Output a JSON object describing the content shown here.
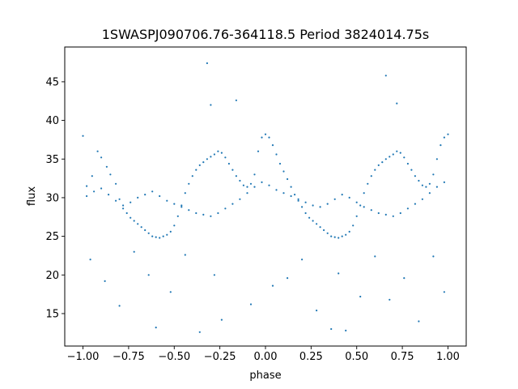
{
  "chart_data": {
    "type": "scatter",
    "title": "1SWASPJ090706.76-364118.5 Period 3824014.75s",
    "xlabel": "phase",
    "ylabel": "flux",
    "xlim": [
      -1.1,
      1.1
    ],
    "ylim": [
      10.8,
      49.5
    ],
    "xticks": [
      -1.0,
      -0.75,
      -0.5,
      -0.25,
      0.0,
      0.25,
      0.5,
      0.75,
      1.0
    ],
    "xtick_labels": [
      "−1.00",
      "−0.75",
      "−0.50",
      "−0.25",
      "0.00",
      "0.25",
      "0.50",
      "0.75",
      "1.00"
    ],
    "yticks": [
      15,
      20,
      25,
      30,
      35,
      40,
      45
    ],
    "ytick_labels": [
      "15",
      "20",
      "25",
      "30",
      "35",
      "40",
      "45"
    ],
    "grid": false,
    "marker_color": "#1f77b4",
    "series": [
      {
        "x": [
          -1.0,
          -0.98,
          -0.95,
          -0.92,
          -0.9,
          -0.87,
          -0.85,
          -0.82,
          -0.8,
          -0.78,
          -0.76,
          -0.74,
          -0.72,
          -0.7,
          -0.68,
          -0.66,
          -0.64,
          -0.62,
          -0.6,
          -0.58,
          -0.56,
          -0.54,
          -0.52,
          -0.5,
          -0.48,
          -0.46,
          -0.44,
          -0.42,
          -0.4,
          -0.38,
          -0.36,
          -0.34,
          -0.32,
          -0.3,
          -0.28,
          -0.26,
          -0.24,
          -0.22,
          -0.2,
          -0.18,
          -0.16,
          -0.14,
          -0.12,
          -0.1,
          -0.08,
          -0.06,
          -0.04,
          -0.02,
          0.0,
          0.02,
          0.04,
          0.06,
          0.08,
          0.1,
          0.12,
          0.14,
          0.16,
          0.18,
          0.2,
          0.22,
          0.24,
          0.26,
          0.28,
          0.3,
          0.32,
          0.34,
          0.36,
          0.38,
          0.4,
          0.42,
          0.44,
          0.46,
          0.48,
          0.5,
          0.52,
          0.54,
          0.56,
          0.58,
          0.6,
          0.62,
          0.64,
          0.66,
          0.68,
          0.7,
          0.72,
          0.74,
          0.76,
          0.78,
          0.8,
          0.82,
          0.84,
          0.86,
          0.88,
          0.9,
          0.92,
          0.94,
          0.96,
          0.98,
          1.0
        ],
        "y": [
          38.0,
          31.5,
          32.8,
          36.0,
          35.2,
          34.0,
          33.0,
          31.8,
          29.8,
          28.6,
          28.0,
          27.4,
          27.0,
          26.6,
          26.2,
          25.8,
          25.4,
          25.0,
          24.9,
          24.8,
          25.0,
          25.2,
          25.6,
          26.4,
          27.6,
          29.0,
          30.6,
          31.8,
          32.8,
          33.6,
          34.2,
          34.6,
          35.0,
          35.3,
          35.6,
          36.0,
          35.8,
          35.2,
          34.4,
          33.6,
          32.8,
          32.2,
          31.6,
          31.4,
          31.8,
          33.0,
          36.0,
          37.8,
          38.2,
          37.8,
          36.8,
          35.6,
          34.4,
          33.4,
          32.4,
          31.4,
          30.4,
          29.6,
          28.8,
          28.0,
          27.4,
          27.0,
          26.6,
          26.2,
          25.8,
          25.4,
          25.0,
          24.9,
          24.8,
          25.0,
          25.2,
          25.6,
          26.4,
          27.6,
          29.0,
          30.6,
          31.8,
          32.8,
          33.6,
          34.2,
          34.6,
          35.0,
          35.3,
          35.6,
          36.0,
          35.8,
          35.2,
          34.4,
          33.6,
          32.8,
          32.2,
          31.6,
          31.4,
          31.8,
          33.0,
          35.0,
          36.8,
          37.8,
          38.2
        ]
      },
      {
        "x": [
          -0.98,
          -0.94,
          -0.9,
          -0.86,
          -0.82,
          -0.78,
          -0.74,
          -0.7,
          -0.66,
          -0.62,
          -0.58,
          -0.54,
          -0.5,
          -0.46,
          -0.42,
          -0.38,
          -0.34,
          -0.3,
          -0.26,
          -0.22,
          -0.18,
          -0.14,
          -0.1,
          -0.06,
          -0.02,
          0.02,
          0.06,
          0.1,
          0.14,
          0.18,
          0.22,
          0.26,
          0.3,
          0.34,
          0.38,
          0.42,
          0.46,
          0.5,
          0.54,
          0.58,
          0.62,
          0.66,
          0.7,
          0.74,
          0.78,
          0.82,
          0.86,
          0.9,
          0.94,
          0.98
        ],
        "y": [
          30.2,
          30.8,
          31.2,
          30.4,
          29.6,
          29.0,
          29.4,
          30.0,
          30.4,
          30.8,
          30.2,
          29.6,
          29.2,
          28.8,
          28.4,
          28.0,
          27.8,
          27.6,
          28.0,
          28.6,
          29.2,
          29.8,
          30.6,
          31.4,
          32.0,
          31.6,
          31.0,
          30.6,
          30.2,
          29.8,
          29.4,
          29.0,
          28.8,
          29.2,
          29.8,
          30.4,
          30.0,
          29.4,
          28.8,
          28.4,
          28.0,
          27.8,
          27.6,
          28.0,
          28.6,
          29.2,
          29.8,
          30.6,
          31.4,
          32.0
        ]
      },
      {
        "x": [
          -0.96,
          -0.88,
          -0.8,
          -0.72,
          -0.64,
          -0.6,
          -0.52,
          -0.44,
          -0.36,
          -0.32,
          -0.3,
          -0.28,
          -0.24,
          -0.16,
          -0.08,
          0.04,
          0.12,
          0.2,
          0.28,
          0.36,
          0.4,
          0.44,
          0.52,
          0.6,
          0.66,
          0.68,
          0.72,
          0.76,
          0.84,
          0.92,
          0.98
        ],
        "y": [
          22.0,
          19.2,
          16.0,
          23.0,
          20.0,
          13.2,
          17.8,
          22.6,
          12.6,
          47.4,
          42.0,
          20.0,
          14.2,
          42.6,
          16.2,
          18.6,
          19.6,
          22.0,
          15.4,
          13.0,
          20.2,
          12.8,
          17.2,
          22.4,
          45.8,
          16.8,
          42.2,
          19.6,
          14.0,
          22.4,
          17.8
        ]
      }
    ]
  }
}
